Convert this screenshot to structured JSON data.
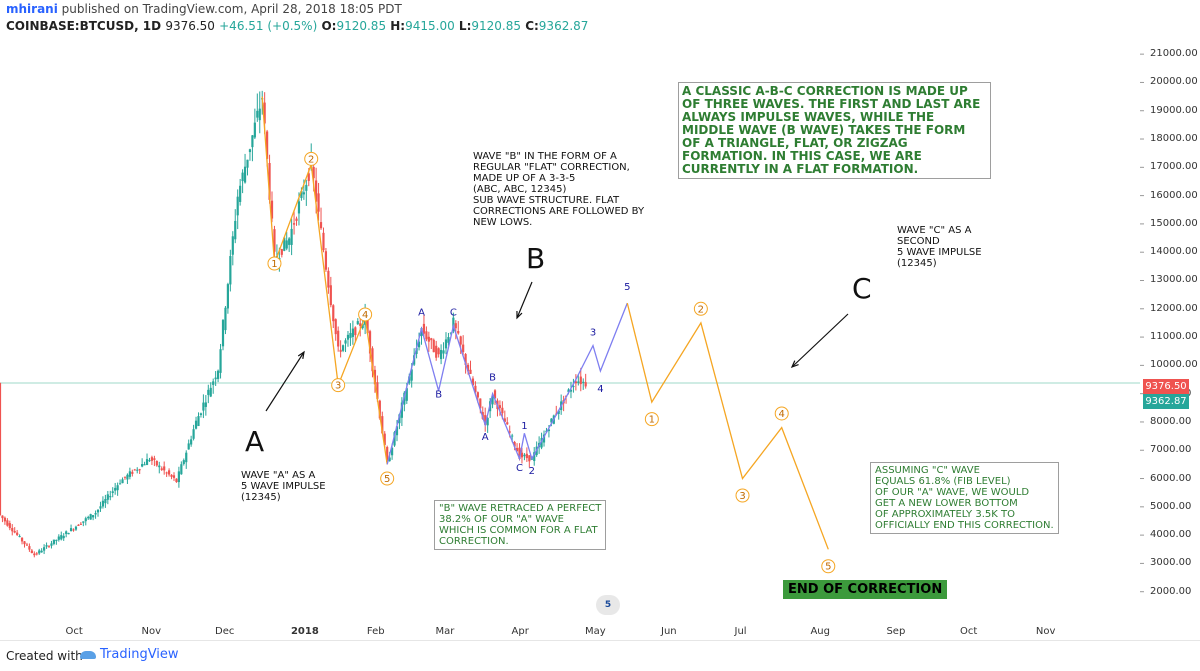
{
  "header": {
    "user": "mhirani",
    "published": "published on TradingView.com, April 28, 2018 18:05 PDT",
    "symbol": "COINBASE:BTCUSD, 1D",
    "price": "9376.50",
    "change": "+46.51 (+0.5%)",
    "o_label": "O:",
    "o": "9120.85",
    "h_label": "H:",
    "h": "9415.00",
    "l_label": "L:",
    "l": "9120.85",
    "c_label": "C:",
    "c": "9362.87"
  },
  "footer": {
    "created": "Created with",
    "brand": "TradingView"
  },
  "price_tags": {
    "last": "9376.50",
    "close": "9362.87"
  },
  "colors": {
    "up": "#26a69a",
    "down": "#ef5350",
    "wave_abc": "#7e7ef0",
    "wave_c": "#f5a623",
    "note_green": "#2e7d32"
  },
  "annotations": {
    "big_A": "A",
    "big_B": "B",
    "big_C": "C",
    "wave_a": "WAVE \"A\" AS A\n5 WAVE IMPULSE\n(12345)",
    "wave_b": "WAVE \"B\" IN THE FORM OF A\nREGULAR \"FLAT\" CORRECTION,\nMADE UP OF A 3-3-5\n(ABC, ABC, 12345)\nSUB WAVE STRUCTURE. FLAT\nCORRECTIONS ARE FOLLOWED BY\nNEW LOWS.",
    "wave_c": "WAVE \"C\" AS A\nSECOND\n5 WAVE IMPULSE\n(12345)",
    "classic": "A CLASSIC A-B-C CORRECTION IS MADE UP OF THREE WAVES. THE FIRST AND LAST ARE ALWAYS IMPULSE WAVES, WHILE THE MIDDLE WAVE (B WAVE) TAKES THE FORM OF A TRIANGLE, FLAT, OR ZIGZAG FORMATION. IN THIS CASE, WE ARE CURRENTLY IN A FLAT FORMATION.",
    "b_retrace": "\"B\" WAVE RETRACED A PERFECT\n38.2% OF OUR \"A\" WAVE\nWHICH IS COMMON FOR A FLAT\nCORRECTION.",
    "assume": "ASSUMING \"C\" WAVE\nEQUALS 61.8% (FIB LEVEL)\nOF OUR \"A\" WAVE, WE WOULD\nGET A NEW LOWER BOTTOM\nOF APPROXIMATELY 3.5K TO\nOFFICIALLY END THIS CORRECTION.",
    "end": "END OF CORRECTION",
    "flag": "5"
  },
  "chart_data": {
    "type": "candlestick",
    "title": "",
    "xlabel": "",
    "ylabel": "",
    "ylim": [
      1000,
      21500
    ],
    "yticks": [
      2000,
      3000,
      4000,
      5000,
      6000,
      7000,
      8000,
      9000,
      10000,
      11000,
      12000,
      13000,
      14000,
      15000,
      16000,
      17000,
      18000,
      19000,
      20000,
      21000
    ],
    "ytick_labels": [
      "2000.00",
      "3000.00",
      "4000.00",
      "5000.00",
      "6000.00",
      "7000.00",
      "8000.00",
      "9000.00",
      "10000.00",
      "11000.00",
      "12000.00",
      "13000.00",
      "14000.00",
      "15000.00",
      "16000.00",
      "17000.00",
      "18000.00",
      "19000.00",
      "20000.00",
      "21000.00"
    ],
    "xticks": [
      {
        "label": "Oct",
        "date": "2017-10-01"
      },
      {
        "label": "Nov",
        "date": "2017-11-01"
      },
      {
        "label": "Dec",
        "date": "2017-12-01"
      },
      {
        "label": "2018",
        "date": "2018-01-01"
      },
      {
        "label": "Feb",
        "date": "2018-02-01"
      },
      {
        "label": "Mar",
        "date": "2018-03-01"
      },
      {
        "label": "Apr",
        "date": "2018-04-01"
      },
      {
        "label": "May",
        "date": "2018-05-01"
      },
      {
        "label": "Jun",
        "date": "2018-06-01"
      },
      {
        "label": "Jul",
        "date": "2018-07-01"
      },
      {
        "label": "Aug",
        "date": "2018-08-01"
      },
      {
        "label": "Sep",
        "date": "2018-09-01"
      },
      {
        "label": "Oct",
        "date": "2018-10-01"
      },
      {
        "label": "Nov",
        "date": "2018-11-01"
      }
    ],
    "x_start": "2017-09-01",
    "x_end": "2018-11-30",
    "last_price": 9376.5,
    "close_price": 9362.87,
    "price_path": [
      [
        "2017-09-01",
        4700
      ],
      [
        "2017-09-15",
        3300
      ],
      [
        "2017-09-25",
        3900
      ],
      [
        "2017-10-10",
        4800
      ],
      [
        "2017-10-20",
        5900
      ],
      [
        "2017-11-01",
        6700
      ],
      [
        "2017-11-12",
        5900
      ],
      [
        "2017-11-20",
        8000
      ],
      [
        "2017-11-29",
        9900
      ],
      [
        "2017-12-07",
        16000
      ],
      [
        "2017-12-17",
        19500
      ],
      [
        "2017-12-22",
        13800
      ],
      [
        "2017-12-28",
        14500
      ],
      [
        "2018-01-06",
        17100
      ],
      [
        "2018-01-17",
        10500
      ],
      [
        "2018-01-28",
        11700
      ],
      [
        "2018-02-06",
        6500
      ],
      [
        "2018-02-20",
        11300
      ],
      [
        "2018-02-27",
        10300
      ],
      [
        "2018-03-05",
        11500
      ],
      [
        "2018-03-18",
        7900
      ],
      [
        "2018-03-21",
        9000
      ],
      [
        "2018-04-01",
        6800
      ],
      [
        "2018-04-06",
        6700
      ],
      [
        "2018-04-15",
        8200
      ],
      [
        "2018-04-24",
        9500
      ],
      [
        "2018-04-28",
        9376
      ]
    ],
    "wave_counts": [
      {
        "label": "1",
        "date": "2017-12-22",
        "value": 13600,
        "circled": true
      },
      {
        "label": "2",
        "date": "2018-01-06",
        "value": 17300,
        "circled": true
      },
      {
        "label": "3",
        "date": "2018-01-17",
        "value": 9300,
        "circled": true
      },
      {
        "label": "4",
        "date": "2018-01-28",
        "value": 11800,
        "circled": true
      },
      {
        "label": "5",
        "date": "2018-02-06",
        "value": 6000,
        "circled": true
      },
      {
        "label": "A",
        "date": "2018-02-20",
        "value": 11900,
        "circled": false
      },
      {
        "label": "B",
        "date": "2018-02-27",
        "value": 9000,
        "circled": false
      },
      {
        "label": "C",
        "date": "2018-03-05",
        "value": 11900,
        "circled": false
      },
      {
        "label": "A",
        "date": "2018-03-18",
        "value": 7500,
        "circled": false
      },
      {
        "label": "B",
        "date": "2018-03-21",
        "value": 9600,
        "circled": false
      },
      {
        "label": "C",
        "date": "2018-04-01",
        "value": 6400,
        "circled": false
      },
      {
        "label": "1",
        "date": "2018-04-03",
        "value": 7900,
        "circled": false
      },
      {
        "label": "2",
        "date": "2018-04-06",
        "value": 6300,
        "circled": false
      },
      {
        "label": "3",
        "date": "2018-05-01",
        "value": 11200,
        "circled": false
      },
      {
        "label": "4",
        "date": "2018-05-04",
        "value": 9200,
        "circled": false
      },
      {
        "label": "5",
        "date": "2018-05-15",
        "value": 12800,
        "circled": false
      }
    ],
    "abc_path": [
      [
        "2018-02-06",
        6500
      ],
      [
        "2018-02-20",
        11300
      ],
      [
        "2018-02-27",
        9100
      ],
      [
        "2018-03-05",
        11400
      ],
      [
        "2018-03-18",
        7900
      ],
      [
        "2018-03-21",
        9000
      ],
      [
        "2018-04-01",
        6700
      ],
      [
        "2018-04-03",
        7600
      ],
      [
        "2018-04-06",
        6700
      ],
      [
        "2018-04-24",
        9500
      ],
      [
        "2018-05-01",
        10700
      ],
      [
        "2018-05-04",
        9800
      ],
      [
        "2018-05-15",
        12200
      ]
    ],
    "wave_a_path": [
      [
        "2017-12-17",
        19500
      ],
      [
        "2017-12-22",
        13600
      ],
      [
        "2018-01-06",
        17100
      ],
      [
        "2018-01-17",
        9300
      ],
      [
        "2018-01-28",
        11700
      ],
      [
        "2018-02-06",
        6500
      ]
    ],
    "projection_path": [
      [
        "2018-05-15",
        12200
      ],
      [
        "2018-05-25",
        8700
      ],
      [
        "2018-06-14",
        11500
      ],
      [
        "2018-07-01",
        6000
      ],
      [
        "2018-07-17",
        7800
      ],
      [
        "2018-08-05",
        3500
      ]
    ],
    "projection_counts": [
      {
        "label": "1",
        "date": "2018-05-25",
        "value": 8100
      },
      {
        "label": "2",
        "date": "2018-06-14",
        "value": 12000
      },
      {
        "label": "3",
        "date": "2018-07-01",
        "value": 5400
      },
      {
        "label": "4",
        "date": "2018-07-17",
        "value": 8300
      },
      {
        "label": "5",
        "date": "2018-08-05",
        "value": 2900
      }
    ]
  }
}
